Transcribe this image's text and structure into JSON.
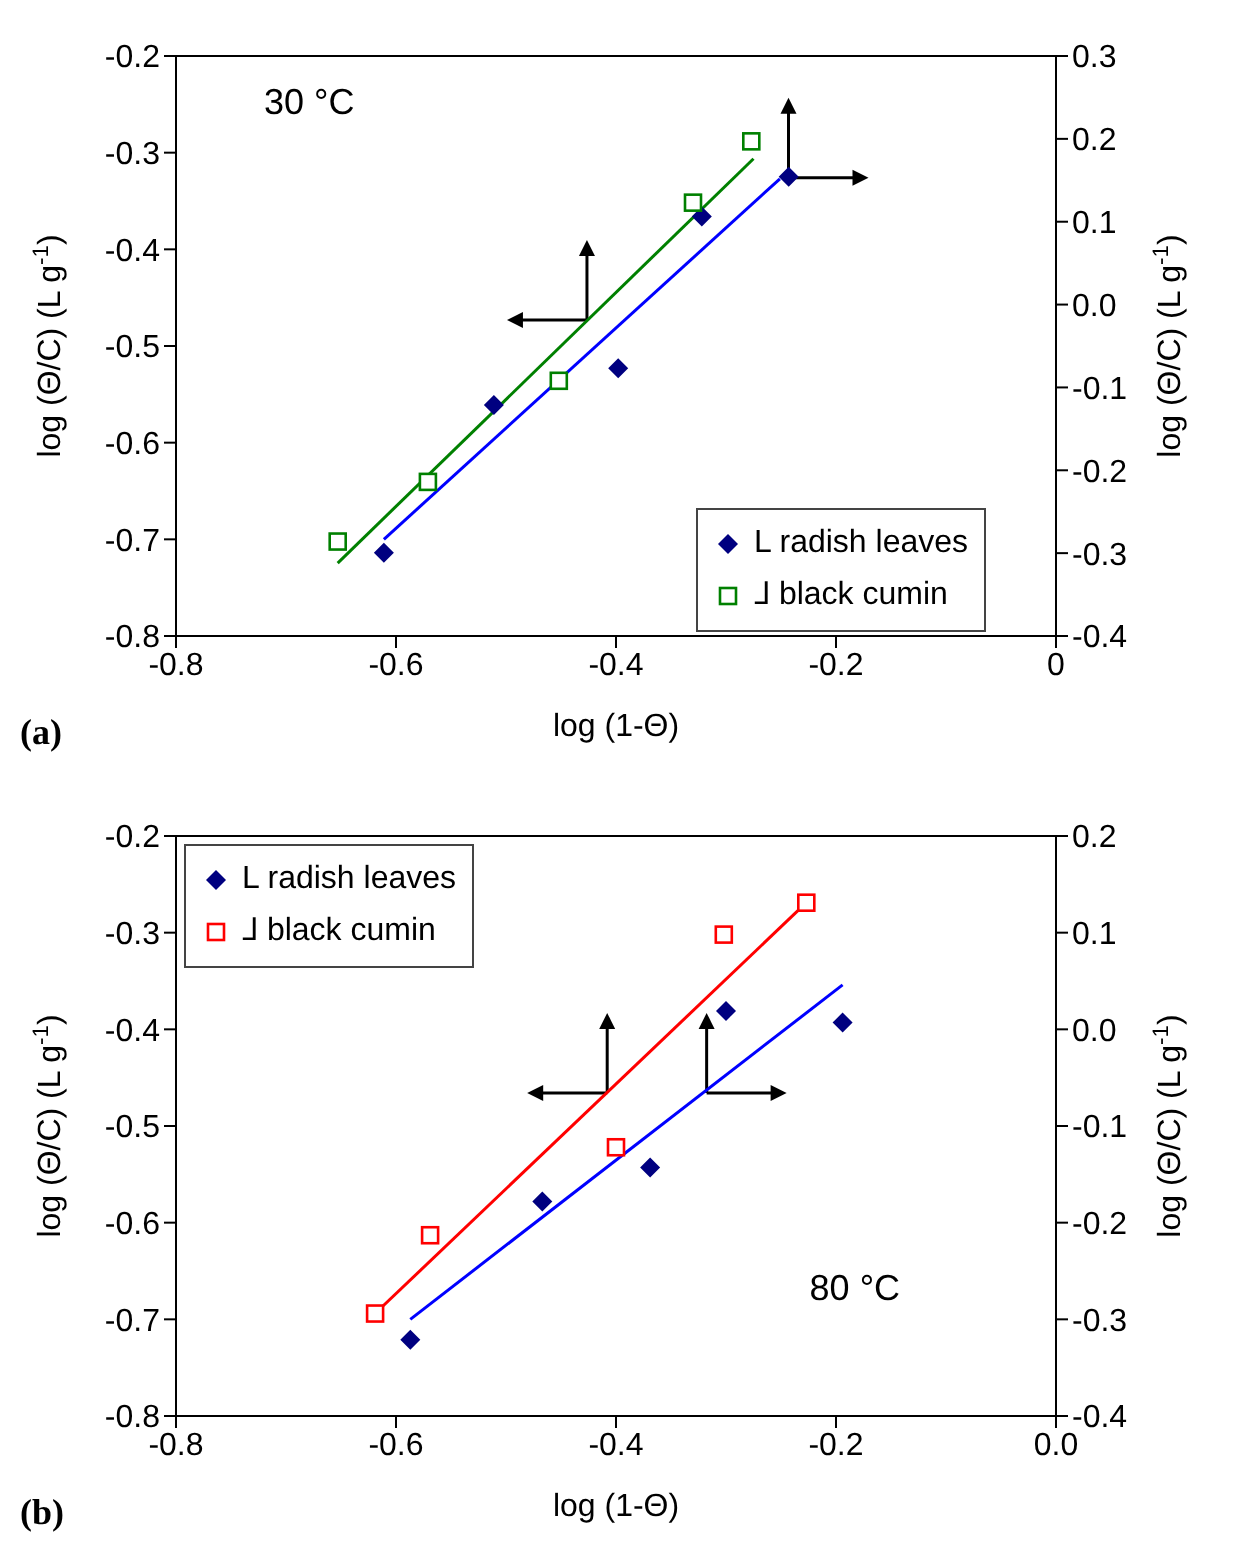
{
  "chart_data": [
    {
      "type": "scatter",
      "xlabel": "log (1-Θ)",
      "ylabel": "log (Θ/C) (L g$^{-1}$)",
      "y2label": "log (Θ/C) (L g$^{-1}$)",
      "xlim": [
        -0.8,
        0
      ],
      "xticks": [
        -0.8,
        -0.6,
        -0.4,
        -0.2,
        0
      ],
      "ylim": [
        -0.8,
        -0.2
      ],
      "yticks": [
        -0.8,
        -0.7,
        -0.6,
        -0.5,
        -0.4,
        -0.3,
        -0.2
      ],
      "y2lim": [
        -0.4,
        0.3
      ],
      "y2ticks": [
        -0.4,
        -0.3,
        -0.2,
        -0.1,
        {
          "value": 0,
          "label": "0.0"
        },
        0.1,
        0.2,
        0.3
      ],
      "legend": "bottom right",
      "annotations": [
        "30 °C",
        "(a)"
      ],
      "series": [
        {
          "name": "L radish leaves",
          "marker": "diamond",
          "color": "#000080",
          "x": [
            -0.611,
            -0.511,
            -0.398,
            -0.322,
            -0.243
          ],
          "values": [
            -0.714,
            -0.561,
            -0.523,
            -0.366,
            -0.325
          ]
        },
        {
          "name": "⅃ black cumin",
          "marker": "square",
          "color": "#008000",
          "axis": "y2",
          "x": [
            -0.653,
            -0.571,
            -0.452,
            -0.33,
            -0.277
          ],
          "values": [
            -0.286,
            -0.214,
            -0.092,
            0.123,
            0.197
          ]
        },
        {
          "type": "line",
          "marker": "none",
          "color": "#0000ff",
          "x": [
            -0.611,
            -0.251
          ],
          "values": [
            -0.7,
            -0.327
          ]
        },
        {
          "type": "line",
          "marker": "none",
          "color": "#008000",
          "axis": "y2",
          "x": [
            -0.653,
            -0.275
          ],
          "values": [
            -0.312,
            0.176
          ]
        }
      ]
    },
    {
      "type": "scatter",
      "xlabel": "log (1-Θ)",
      "ylabel": "log (Θ/C) (L g$^{-1}$)",
      "y2label": "log (Θ/C) (L g$^{-1}$)",
      "xlim": [
        -0.8,
        0
      ],
      "xticks": [
        -0.8,
        -0.6,
        -0.4,
        -0.2,
        {
          "value": 0,
          "label": "0.0"
        }
      ],
      "ylim": [
        -0.8,
        -0.2
      ],
      "yticks": [
        -0.8,
        -0.7,
        -0.6,
        -0.5,
        -0.4,
        -0.3,
        -0.2
      ],
      "y2lim": [
        -0.4,
        0.2
      ],
      "y2ticks": [
        -0.4,
        -0.3,
        -0.2,
        -0.1,
        {
          "value": 0,
          "label": "0.0"
        },
        0.1,
        0.2
      ],
      "legend": "top left",
      "annotations": [
        "80 °C",
        "(b)"
      ],
      "series": [
        {
          "name": "L radish leaves",
          "marker": "diamond",
          "color": "#000080",
          "x": [
            -0.587,
            -0.467,
            -0.369,
            -0.3,
            -0.194
          ],
          "values": [
            -0.721,
            -0.578,
            -0.543,
            -0.381,
            -0.393
          ]
        },
        {
          "name": "⅃ black cumin",
          "marker": "square",
          "color": "#ff0000",
          "axis": "y2",
          "x": [
            -0.619,
            -0.569,
            -0.4,
            -0.302,
            -0.227
          ],
          "values": [
            -0.294,
            -0.213,
            -0.122,
            0.098,
            0.131
          ]
        },
        {
          "type": "line",
          "marker": "none",
          "color": "#0000ff",
          "x": [
            -0.587,
            -0.194
          ],
          "values": [
            -0.7,
            -0.354
          ]
        },
        {
          "type": "line",
          "marker": "none",
          "color": "#ff0000",
          "axis": "y2",
          "x": [
            -0.619,
            -0.227
          ],
          "values": [
            -0.294,
            0.131
          ]
        }
      ]
    }
  ]
}
